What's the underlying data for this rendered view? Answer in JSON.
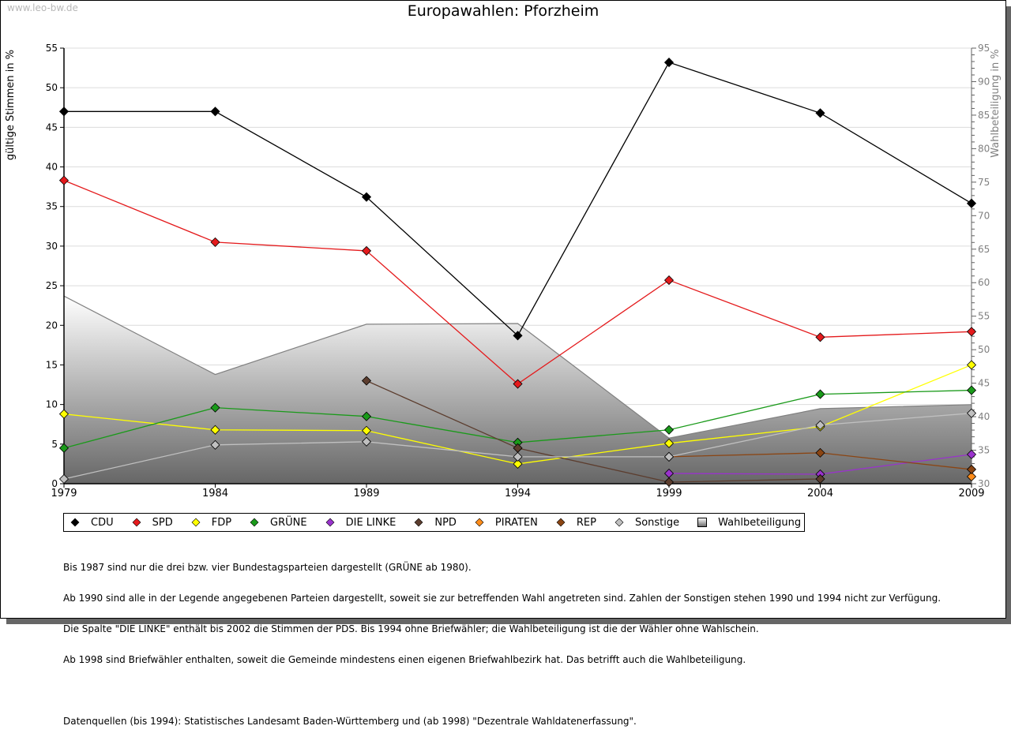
{
  "watermark": "www.leo-bw.de",
  "chart_data": {
    "type": "line",
    "title": "Europawahlen: Pforzheim",
    "xlabel": "",
    "ylabel": "gültige Stimmen in %",
    "y2label": "Wahlbeteiligung in %",
    "x": [
      1979,
      1984,
      1989,
      1994,
      1999,
      2004,
      2009
    ],
    "x_tick_labels": [
      "1979",
      "1984",
      "1989",
      "1994",
      "1999",
      "2004",
      "2009"
    ],
    "ylim": [
      0,
      55
    ],
    "y_ticks": [
      0,
      5,
      10,
      15,
      20,
      25,
      30,
      35,
      40,
      45,
      50,
      55
    ],
    "y2lim": [
      30,
      95
    ],
    "y2_ticks": [
      30,
      35,
      40,
      45,
      50,
      55,
      60,
      65,
      70,
      75,
      80,
      85,
      90,
      95
    ],
    "grid": true,
    "legend_position": "bottom",
    "series": [
      {
        "name": "CDU",
        "color": "#000000",
        "axis": "left",
        "values": [
          47.0,
          47.0,
          36.2,
          18.7,
          53.2,
          46.8,
          35.4
        ]
      },
      {
        "name": "SPD",
        "color": "#e41a1c",
        "axis": "left",
        "values": [
          38.3,
          30.5,
          29.4,
          12.6,
          25.7,
          18.5,
          19.2
        ]
      },
      {
        "name": "FDP",
        "color": "#ffff00",
        "axis": "left",
        "values": [
          8.8,
          6.8,
          6.7,
          2.5,
          5.1,
          7.2,
          15.0
        ]
      },
      {
        "name": "GRÜNE",
        "color": "#1a9a1a",
        "axis": "left",
        "values": [
          4.5,
          9.6,
          8.5,
          5.2,
          6.8,
          11.3,
          11.8
        ]
      },
      {
        "name": "DIE LINKE",
        "color": "#9933cc",
        "axis": "left",
        "values": [
          null,
          null,
          null,
          null,
          1.3,
          1.2,
          3.7
        ]
      },
      {
        "name": "NPD",
        "color": "#5c3d2e",
        "axis": "left",
        "values": [
          null,
          null,
          13.0,
          4.5,
          0.2,
          0.6,
          null
        ]
      },
      {
        "name": "PIRATEN",
        "color": "#ff8c1a",
        "axis": "left",
        "values": [
          null,
          null,
          null,
          null,
          null,
          null,
          0.9
        ]
      },
      {
        "name": "REP",
        "color": "#8b4513",
        "axis": "left",
        "values": [
          null,
          null,
          null,
          null,
          3.4,
          3.9,
          1.8
        ]
      },
      {
        "name": "Sonstige",
        "color": "#c0c0c0",
        "axis": "left",
        "values": [
          0.6,
          4.9,
          5.3,
          3.4,
          3.4,
          7.4,
          8.9
        ]
      }
    ],
    "area": {
      "name": "Wahlbeteiligung",
      "axis": "right",
      "values": [
        58.0,
        46.3,
        53.8,
        53.9,
        36.8,
        41.2,
        41.8
      ]
    }
  },
  "notes": [
    "Bis 1987 sind nur die drei bzw. vier Bundestagsparteien dargestellt (GRÜNE ab 1980).",
    "Ab 1990 sind alle in der Legende angegebenen Parteien dargestellt, soweit sie zur betreffenden Wahl angetreten sind. Zahlen der Sonstigen stehen 1990 und 1994 nicht zur Verfügung.",
    "Die Spalte \"DIE LINKE\" enthält bis 2002 die Stimmen der PDS. Bis 1994 ohne Briefwähler; die Wahlbeteiligung ist die der Wähler ohne Wahlschein.",
    "Ab 1998 sind Briefwähler enthalten, soweit die Gemeinde mindestens einen eigenen Briefwahlbezirk hat. Das betrifft auch die Wahlbeteiligung."
  ],
  "sources": "Datenquellen (bis 1994): Statistisches Landesamt Baden-Württemberg und (ab 1998) \"Dezentrale Wahldatenerfassung\"."
}
